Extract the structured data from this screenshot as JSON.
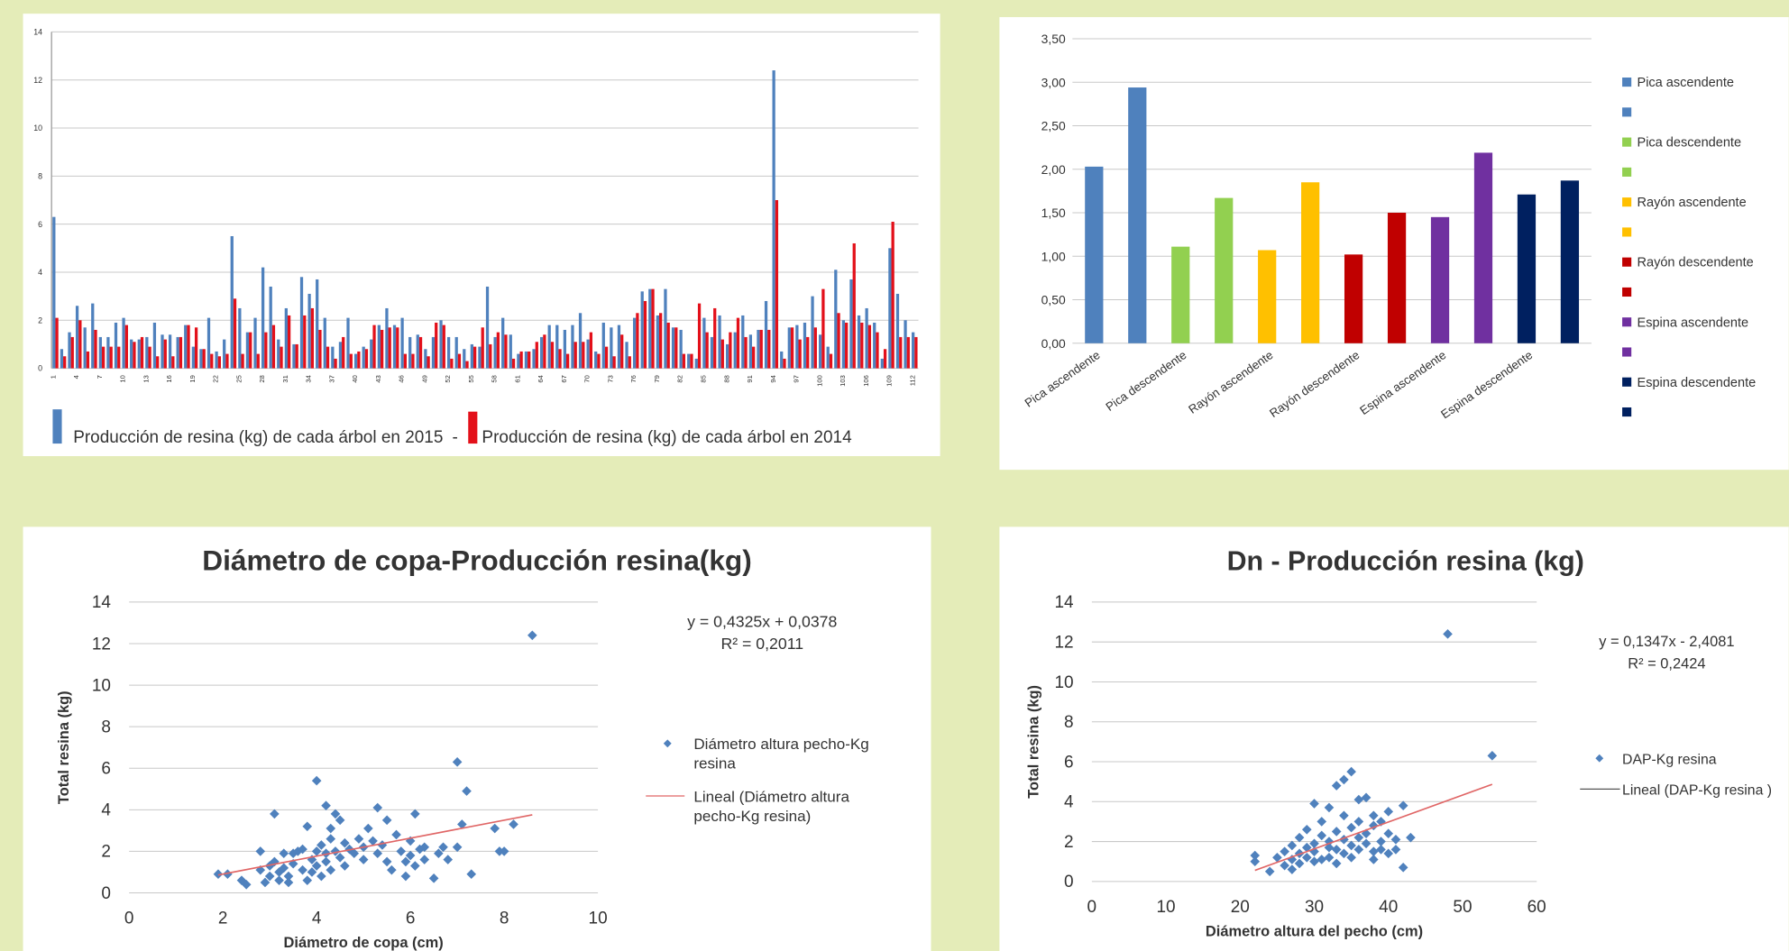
{
  "chart_data": [
    {
      "type": "bar",
      "categories": [
        "1",
        null,
        null,
        "4",
        null,
        null,
        "7",
        null,
        null,
        "10",
        null,
        null,
        "13",
        null,
        null,
        "16",
        null,
        null,
        "19",
        null,
        null,
        "22",
        null,
        null,
        "25",
        null,
        null,
        "28",
        null,
        null,
        "31",
        null,
        null,
        "34",
        null,
        null,
        "37",
        null,
        null,
        "40",
        null,
        null,
        "43",
        null,
        null,
        "46",
        null,
        null,
        "49",
        null,
        null,
        "52",
        null,
        null,
        "55",
        null,
        null,
        "58",
        null,
        null,
        "61",
        null,
        null,
        "64",
        null,
        null,
        "67",
        null,
        null,
        "70",
        null,
        null,
        "73",
        null,
        null,
        "76",
        null,
        null,
        "79",
        null,
        null,
        "82",
        null,
        null,
        "85",
        null,
        null,
        "88",
        null,
        null,
        "91",
        null,
        null,
        "94",
        null,
        null,
        "97",
        null,
        null,
        "100",
        null,
        null,
        "103",
        null,
        null,
        "106",
        null,
        null,
        "109",
        null,
        null,
        "112"
      ],
      "series": [
        {
          "name": "Producción de resina (kg) de cada árbol en 2015",
          "color": "#4f81bd",
          "values": [
            6.3,
            0.8,
            1.5,
            2.6,
            1.7,
            2.7,
            1.3,
            1.3,
            1.9,
            2.1,
            1.2,
            1.2,
            1.3,
            1.9,
            1.4,
            1.4,
            1.3,
            1.8,
            0.9,
            0.8,
            2.1,
            0.7,
            1.2,
            5.5,
            2.5,
            1.5,
            2.1,
            4.2,
            3.4,
            1.2,
            2.5,
            1.0,
            3.8,
            3.1,
            3.7,
            2.1,
            0.9,
            1.1,
            2.1,
            0.6,
            0.9,
            1.2,
            1.8,
            2.5,
            1.8,
            2.1,
            1.3,
            1.4,
            0.8,
            1.3,
            2.0,
            1.3,
            1.3,
            0.8,
            1.0,
            0.9,
            3.4,
            1.3,
            2.1,
            1.4,
            0.6,
            0.7,
            0.8,
            1.3,
            1.8,
            1.8,
            1.6,
            1.8,
            2.3,
            1.2,
            0.7,
            1.9,
            1.7,
            1.8,
            1.1,
            2.1,
            3.2,
            3.3,
            2.2,
            3.3,
            1.7,
            1.6,
            0.6,
            0.4,
            2.1,
            1.3,
            2.2,
            1.0,
            1.5,
            2.2,
            1.4,
            1.6,
            2.8,
            12.4,
            0.7,
            1.7,
            1.8,
            1.9,
            3.0,
            1.4,
            0.9,
            4.1,
            2.0,
            3.7,
            2.2,
            2.5,
            1.9,
            0.4,
            5.0,
            3.1,
            2.0,
            1.5
          ]
        },
        {
          "name": "Producción de resina (kg) de cada árbol en 2014",
          "color": "#e3101a",
          "values": [
            2.1,
            0.5,
            1.3,
            2.0,
            0.7,
            1.6,
            0.9,
            0.9,
            0.9,
            1.8,
            1.1,
            1.3,
            0.9,
            0.5,
            1.2,
            0.5,
            1.3,
            1.8,
            1.7,
            0.8,
            0.6,
            0.5,
            0.6,
            2.9,
            0.6,
            1.5,
            0.6,
            1.5,
            1.8,
            0.9,
            2.2,
            1.0,
            2.2,
            2.5,
            1.6,
            0.9,
            0.4,
            1.3,
            0.6,
            0.7,
            0.8,
            1.8,
            1.6,
            1.7,
            1.7,
            0.6,
            0.6,
            1.3,
            0.5,
            1.9,
            1.8,
            0.4,
            0.6,
            0.3,
            0.9,
            1.7,
            1.0,
            1.5,
            1.4,
            0.4,
            0.7,
            0.7,
            1.1,
            1.4,
            1.1,
            0.8,
            0.6,
            1.1,
            1.1,
            1.5,
            0.6,
            0.9,
            0.5,
            1.4,
            0.5,
            2.3,
            2.8,
            3.3,
            2.3,
            1.9,
            1.7,
            0.6,
            0.6,
            2.7,
            1.5,
            2.5,
            1.2,
            1.5,
            2.1,
            1.3,
            0.9,
            1.6,
            1.6,
            7.0,
            0.4,
            1.7,
            1.2,
            1.3,
            1.7,
            3.3,
            0.6,
            2.3,
            1.9,
            5.2,
            1.9,
            1.8,
            1.5,
            0.8,
            6.1,
            1.3,
            1.3,
            1.3
          ]
        }
      ],
      "legend_separator": "-",
      "ylim": [
        0,
        14
      ],
      "yticks": [
        0,
        2,
        4,
        6,
        8,
        10,
        12,
        14
      ],
      "grid": true
    },
    {
      "type": "bar",
      "categories": [
        "Pica ascendente",
        null,
        "Pica descendente",
        null,
        "Rayón ascendente",
        null,
        "Rayón descendente",
        null,
        "Espina ascendente",
        null,
        "Espina descendente",
        null
      ],
      "values": [
        2.03,
        2.94,
        1.11,
        1.67,
        1.07,
        1.85,
        1.02,
        1.5,
        1.45,
        2.19,
        1.71,
        1.87
      ],
      "colors": [
        "#4f81bd",
        "#4f81bd",
        "#92d050",
        "#92d050",
        "#ffc000",
        "#ffc000",
        "#c00000",
        "#c00000",
        "#7030a0",
        "#7030a0",
        "#002060",
        "#002060"
      ],
      "ylim": [
        0,
        3.5
      ],
      "yticks": [
        {
          "value": 0,
          "label": "0,00"
        },
        {
          "value": 0.5,
          "label": "0,50"
        },
        {
          "value": 1,
          "label": "1,00"
        },
        {
          "value": 1.5,
          "label": "1,50"
        },
        {
          "value": 2,
          "label": "2,00"
        },
        {
          "value": 2.5,
          "label": "2,50"
        },
        {
          "value": 3,
          "label": "3,00"
        },
        {
          "value": 3.5,
          "label": "3,50"
        }
      ],
      "grid": true,
      "legend": "right"
    },
    {
      "type": "scatter",
      "title": "Diámetro de copa-Producción resina(kg)",
      "x_label": "Diámetro de copa (cm)",
      "y_label": "Total resina (kg)",
      "series": [
        {
          "name": "Diámetro altura pecho-Kg resina",
          "color": "#4f81bd",
          "x": [
            1.9,
            2.1,
            2.4,
            2.5,
            2.8,
            2.8,
            2.9,
            3.0,
            3.0,
            3.1,
            3.1,
            3.2,
            3.2,
            3.3,
            3.3,
            3.4,
            3.4,
            3.5,
            3.5,
            3.6,
            3.7,
            3.7,
            3.8,
            3.8,
            3.9,
            3.9,
            4.0,
            4.0,
            4.0,
            4.1,
            4.1,
            4.2,
            4.2,
            4.2,
            4.3,
            4.3,
            4.3,
            4.4,
            4.4,
            4.5,
            4.5,
            4.6,
            4.6,
            4.7,
            4.8,
            4.9,
            5.0,
            5.0,
            5.1,
            5.2,
            5.3,
            5.3,
            5.4,
            5.5,
            5.5,
            5.6,
            5.7,
            5.8,
            5.9,
            5.9,
            6.0,
            6.0,
            6.1,
            6.1,
            6.2,
            6.3,
            6.3,
            6.5,
            6.6,
            6.7,
            6.8,
            7.0,
            7.0,
            7.1,
            7.2,
            7.3,
            7.8,
            7.9,
            8.0,
            8.2,
            8.6
          ],
          "values": [
            0.9,
            0.9,
            0.6,
            0.4,
            1.1,
            2.0,
            0.5,
            1.3,
            0.8,
            1.5,
            3.8,
            1.0,
            0.6,
            1.9,
            1.2,
            0.8,
            0.5,
            1.4,
            1.9,
            2.0,
            1.1,
            2.1,
            0.6,
            3.2,
            1.6,
            1.0,
            5.4,
            2.0,
            1.3,
            2.3,
            0.8,
            1.9,
            4.2,
            1.5,
            3.1,
            2.6,
            1.1,
            2.0,
            3.8,
            3.5,
            1.7,
            2.4,
            1.3,
            2.1,
            1.9,
            2.6,
            1.6,
            2.2,
            3.1,
            2.5,
            1.9,
            4.1,
            2.3,
            3.5,
            1.5,
            1.1,
            2.8,
            2.0,
            1.5,
            0.8,
            2.5,
            1.8,
            3.8,
            1.3,
            2.1,
            1.6,
            2.2,
            0.7,
            1.9,
            2.2,
            1.6,
            6.3,
            2.2,
            3.3,
            4.9,
            0.9,
            3.1,
            2.0,
            2.0,
            3.3,
            12.4
          ]
        }
      ],
      "trendline": {
        "name": "Lineal (Diámetro altura pecho-Kg resina)",
        "color": "#e06666",
        "slope": 0.4325,
        "intercept": 0.0378,
        "x_range": [
          1.9,
          8.6
        ],
        "equation": "y = 0,4325x + 0,0378",
        "r2": "R² = 0,2011"
      },
      "xlim": [
        0,
        10
      ],
      "xticks": [
        0,
        2,
        4,
        6,
        8,
        10
      ],
      "ylim": [
        0,
        14
      ],
      "yticks": [
        0,
        2,
        4,
        6,
        8,
        10,
        12,
        14
      ],
      "grid": true
    },
    {
      "type": "scatter",
      "title": "Dn - Producción resina (kg)",
      "x_label": "Diámetro altura del pecho (cm)",
      "y_label": "Total resina (kg)",
      "series": [
        {
          "name": "DAP-Kg resina",
          "color": "#4f81bd",
          "x": [
            22,
            22,
            24,
            25,
            26,
            26,
            27,
            27,
            27,
            28,
            28,
            28,
            29,
            29,
            29,
            30,
            30,
            30,
            30,
            31,
            31,
            31,
            32,
            32,
            32,
            32,
            33,
            33,
            33,
            33,
            34,
            34,
            34,
            34,
            35,
            35,
            35,
            35,
            36,
            36,
            36,
            36,
            37,
            37,
            37,
            38,
            38,
            38,
            38,
            39,
            39,
            39,
            40,
            40,
            40,
            41,
            41,
            42,
            42,
            43,
            48,
            54
          ],
          "values": [
            1.3,
            1.0,
            0.5,
            1.2,
            1.5,
            0.8,
            1.8,
            1.1,
            0.6,
            1.4,
            2.2,
            0.9,
            1.7,
            1.2,
            2.6,
            1.0,
            1.9,
            3.9,
            1.5,
            2.3,
            1.1,
            3.0,
            1.7,
            2.0,
            3.7,
            1.2,
            2.5,
            1.6,
            4.8,
            0.9,
            2.1,
            5.1,
            3.3,
            1.4,
            5.5,
            2.7,
            1.8,
            1.2,
            4.1,
            2.2,
            3.0,
            1.6,
            1.9,
            2.4,
            4.2,
            1.5,
            2.8,
            3.3,
            1.1,
            2.0,
            1.6,
            3.0,
            1.4,
            2.4,
            3.5,
            1.6,
            2.1,
            0.7,
            3.8,
            2.2,
            12.4,
            6.3
          ]
        }
      ],
      "trendline": {
        "name": "Lineal (DAP-Kg resina )",
        "color": "#e06666",
        "slope": 0.1347,
        "intercept": -2.4081,
        "x_range": [
          22,
          54
        ],
        "equation": "y = 0,1347x - 2,4081",
        "r2": "R² = 0,2424"
      },
      "xlim": [
        0,
        60
      ],
      "xticks": [
        0,
        10,
        20,
        30,
        40,
        50,
        60
      ],
      "ylim": [
        0,
        14
      ],
      "yticks": [
        0,
        2,
        4,
        6,
        8,
        10,
        12,
        14
      ],
      "grid": true
    }
  ]
}
